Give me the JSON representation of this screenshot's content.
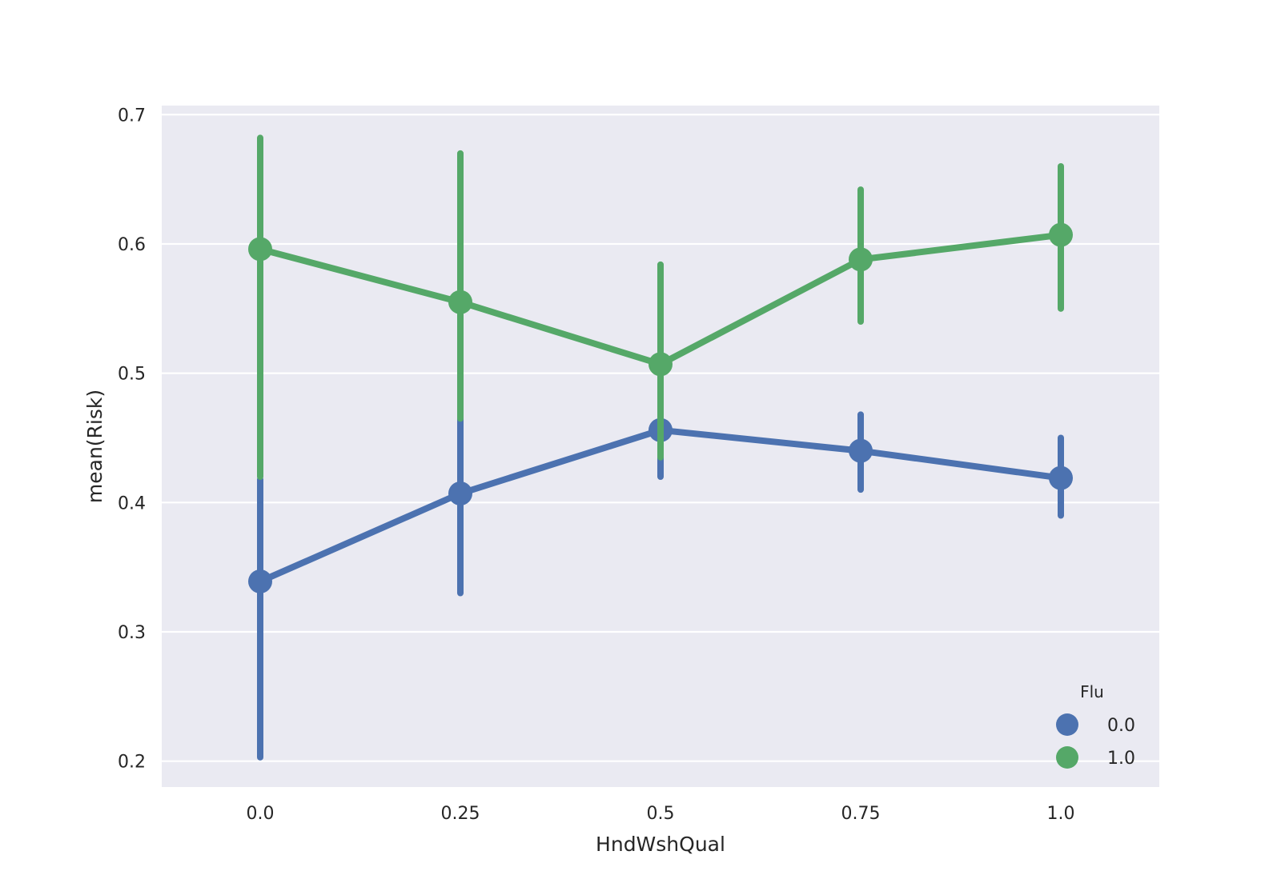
{
  "chart_data": {
    "type": "line",
    "title": "",
    "xlabel": "HndWshQual",
    "ylabel": "mean(Risk)",
    "categories": [
      "0.0",
      "0.25",
      "0.5",
      "0.75",
      "1.0"
    ],
    "ylim": [
      0.18,
      0.707
    ],
    "y_ticks": [
      "0.2",
      "0.3",
      "0.4",
      "0.5",
      "0.6",
      "0.7"
    ],
    "grid": true,
    "legend": {
      "title": "Flu",
      "position": "bottom-right"
    },
    "series": [
      {
        "name": "0.0",
        "color": "#4c72b0",
        "values": [
          0.339,
          0.407,
          0.456,
          0.44,
          0.419
        ],
        "ci_low": [
          0.203,
          0.33,
          0.42,
          0.41,
          0.39
        ],
        "ci_high": [
          0.418,
          0.48,
          0.48,
          0.468,
          0.45
        ]
      },
      {
        "name": "1.0",
        "color": "#55a868",
        "values": [
          0.596,
          0.555,
          0.507,
          0.588,
          0.607
        ],
        "ci_low": [
          0.42,
          0.465,
          0.435,
          0.54,
          0.55
        ],
        "ci_high": [
          0.682,
          0.67,
          0.584,
          0.642,
          0.66
        ]
      }
    ]
  }
}
